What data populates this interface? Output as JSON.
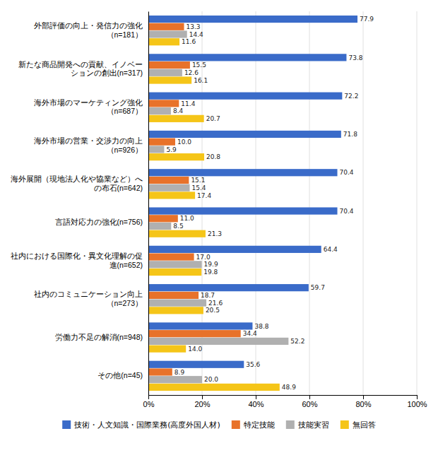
{
  "chart_data": {
    "type": "bar",
    "orientation": "horizontal",
    "categories": [
      "外部評価の向上・発信力の強化\n（n=181）",
      "新たな商品開発への貢献、イノベー\nションの創出(n=317)",
      "海外市場のマーケティング強化\n（n=687）",
      "海外市場の営業・交渉力の向上\n（n=926）",
      "海外展開（現地法人化や協業など）へ\nの布石(n=642)",
      "言語対応力の強化(n=756)",
      "社内における国際化・異文化理解の促\n進(n=652)",
      "社内のコミュニケーション向上\n（n=273）",
      "労働力不足の解消(n=948)",
      "その他(n=45)"
    ],
    "series": [
      {
        "name": "技術・人文知識・国際業務(高度外国人材)",
        "color": "#3A6BC9",
        "values": [
          77.9,
          73.8,
          72.2,
          71.8,
          70.4,
          70.4,
          64.4,
          59.7,
          38.8,
          35.6
        ],
        "value_labels": [
          "77.9",
          "73.8",
          "72.2",
          "71.8",
          "70.4",
          "70.4",
          "64.4",
          "59.7",
          "38.8",
          "35.6"
        ]
      },
      {
        "name": "特定技能",
        "color": "#E8722A",
        "values": [
          13.3,
          15.5,
          11.4,
          10.0,
          15.1,
          11.0,
          17.0,
          18.7,
          34.4,
          8.9
        ],
        "value_labels": [
          "13.3",
          "15.5",
          "11.4",
          "10.0",
          "15.1",
          "11.0",
          "17.0",
          "18.7",
          "34.4",
          "8.9"
        ]
      },
      {
        "name": "技能実習",
        "color": "#B0B0B0",
        "values": [
          14.4,
          12.6,
          8.4,
          5.9,
          15.4,
          8.5,
          19.9,
          21.6,
          52.2,
          20.0
        ],
        "value_labels": [
          "14.4",
          "12.6",
          "8.4",
          "5.9",
          "15.4",
          "8.5",
          "19.9",
          "21.6",
          "52.2",
          "20.0"
        ]
      },
      {
        "name": "無回答",
        "color": "#F5C518",
        "values": [
          11.6,
          16.1,
          20.7,
          20.8,
          17.4,
          21.3,
          19.8,
          20.5,
          14.0,
          48.9
        ],
        "value_labels": [
          "11.6",
          "16.1",
          "20.7",
          "20.8",
          "17.4",
          "21.3",
          "19.8",
          "20.5",
          "14.0",
          "48.9"
        ]
      }
    ],
    "xlim": [
      0,
      100
    ],
    "xticks": [
      {
        "value": 0,
        "label": "0%"
      },
      {
        "value": 20,
        "label": "20%"
      },
      {
        "value": 40,
        "label": "40%"
      },
      {
        "value": 60,
        "label": "60%"
      },
      {
        "value": 80,
        "label": "80%"
      },
      {
        "value": 100,
        "label": "100%"
      }
    ],
    "grid": true,
    "data_labels": true,
    "legend": "bottom"
  }
}
